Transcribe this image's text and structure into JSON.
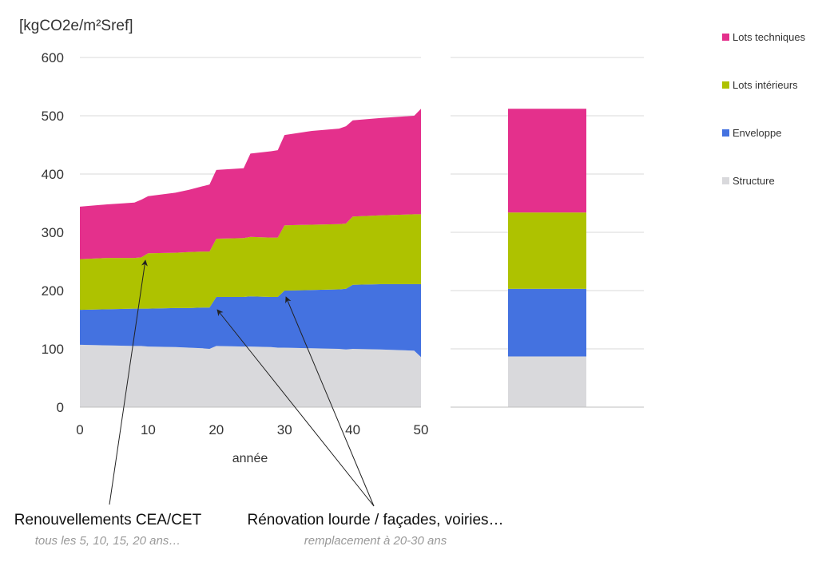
{
  "chart_data": {
    "type": "area",
    "unit_label": "[kgCO2e/m²Sref]",
    "xlabel": "année",
    "xlim": [
      0,
      50
    ],
    "ylim": [
      0,
      600
    ],
    "yticks": [
      0,
      100,
      200,
      300,
      400,
      500,
      600
    ],
    "xticks": [
      0,
      10,
      20,
      30,
      40,
      50
    ],
    "grid": true,
    "legend_position": "right",
    "x": [
      0,
      4,
      8,
      9,
      10,
      14,
      16,
      18,
      19,
      20,
      24,
      25,
      28,
      29,
      30,
      34,
      38,
      39,
      40,
      44,
      49,
      50
    ],
    "series": [
      {
        "name": "Structure",
        "color": "#d9d9dc",
        "values": [
          107,
          106,
          105,
          105,
          104,
          103,
          102,
          101,
          100,
          105,
          104,
          104,
          103,
          102,
          102,
          101,
          100,
          99,
          100,
          99,
          97,
          86
        ]
      },
      {
        "name": "Enveloppe",
        "color": "#4472e0",
        "values": [
          60,
          62,
          64,
          64,
          65,
          67,
          68,
          70,
          71,
          84,
          85,
          86,
          86,
          87,
          98,
          100,
          102,
          104,
          110,
          112,
          114,
          125
        ]
      },
      {
        "name": "Lots intérieurs",
        "color": "#aec200",
        "values": [
          87,
          88,
          87,
          88,
          95,
          95,
          96,
          96,
          96,
          100,
          101,
          102,
          102,
          102,
          112,
          112,
          112,
          112,
          117,
          118,
          120,
          120
        ]
      },
      {
        "name": "Lots techniques",
        "color": "#e4308c",
        "values": [
          90,
          92,
          95,
          99,
          98,
          103,
          107,
          112,
          115,
          118,
          120,
          143,
          148,
          150,
          155,
          161,
          164,
          167,
          165,
          167,
          169,
          181
        ]
      }
    ],
    "total_bar": {
      "values": [
        {
          "name": "Structure",
          "value": 87
        },
        {
          "name": "Enveloppe",
          "value": 116
        },
        {
          "name": "Lots intérieurs",
          "value": 131
        },
        {
          "name": "Lots techniques",
          "value": 178
        }
      ]
    }
  },
  "annotations": [
    {
      "main": "Renouvellements CEA/CET",
      "sub": "tous les 5, 10, 15, 20 ans…"
    },
    {
      "main": "Rénovation lourde / façades, voiries…",
      "sub": "remplacement à 20-30 ans"
    }
  ]
}
